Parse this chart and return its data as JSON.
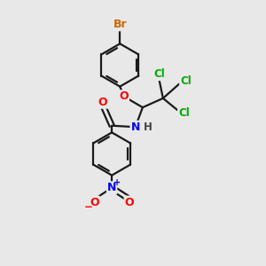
{
  "background_color": "#e8e8e8",
  "bond_color": "#1a1a1a",
  "line_width": 1.6,
  "figsize": [
    3.0,
    3.0
  ],
  "dpi": 100,
  "colors": {
    "Br": "#cc6600",
    "Cl": "#00aa00",
    "O": "#ff0000",
    "N": "#0000ee",
    "C": "#1a1a1a",
    "H": "#444444"
  }
}
